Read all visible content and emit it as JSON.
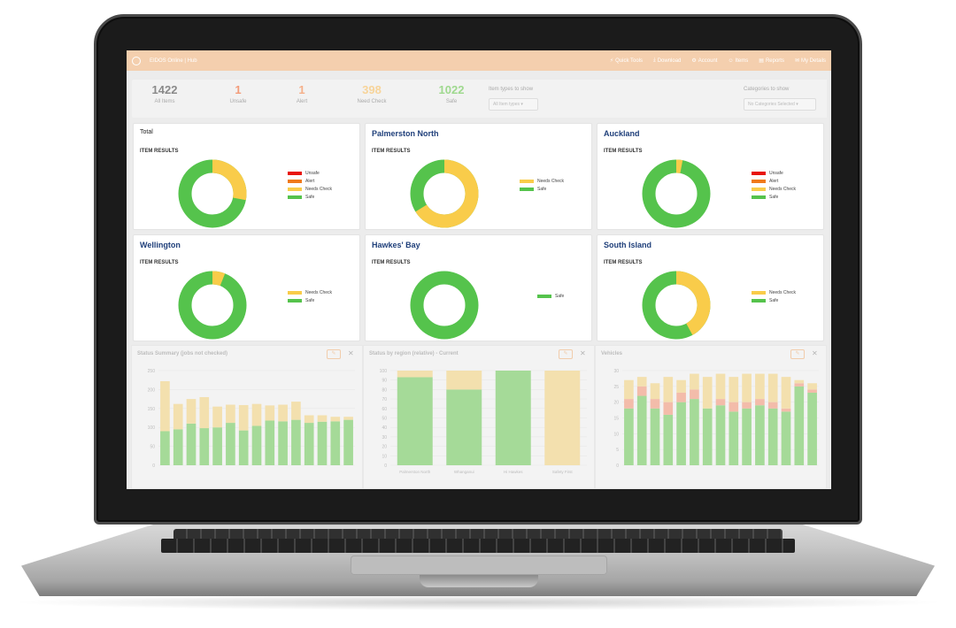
{
  "app": {
    "title": "EIDOS Online | Hub"
  },
  "nav": [
    {
      "icon": "lightning-icon",
      "label": "Quick Tools"
    },
    {
      "icon": "download-icon",
      "label": "Download"
    },
    {
      "icon": "gear-icon",
      "label": "Account"
    },
    {
      "icon": "user-icon",
      "label": "Items"
    },
    {
      "icon": "report-icon",
      "label": "Reports"
    },
    {
      "icon": "inbox-icon",
      "label": "My Details"
    }
  ],
  "summary": [
    {
      "value": "1422",
      "label": "All Items",
      "color": "#8a8a8a"
    },
    {
      "value": "1",
      "label": "Unsafe",
      "color": "#f39c7a"
    },
    {
      "value": "1",
      "label": "Alert",
      "color": "#f5b08a"
    },
    {
      "value": "398",
      "label": "Need Check",
      "color": "#f7d49a"
    },
    {
      "value": "1022",
      "label": "Safe",
      "color": "#9fd98f"
    }
  ],
  "filters": {
    "item_types_label": "Item types to show",
    "item_types_value": "All Item types",
    "categories_label": "Categories to show",
    "categories_value": "No Categories Selected"
  },
  "colors": {
    "unsafe": "#e8140c",
    "alert": "#f07a1a",
    "needs_check": "#f9cc4a",
    "safe": "#55c34c"
  },
  "cards": [
    {
      "title": "Total",
      "subtitle": "ITEM RESULTS",
      "safe": 72,
      "needs": 28,
      "legend": [
        "Unsafe",
        "Alert",
        "Needs Check",
        "Safe"
      ]
    },
    {
      "title": "Palmerston North",
      "subtitle": "ITEM RESULTS",
      "safe": 34,
      "needs": 66,
      "legend": [
        "Needs Check",
        "Safe"
      ]
    },
    {
      "title": "Auckland",
      "subtitle": "ITEM RESULTS",
      "safe": 97,
      "needs": 3,
      "legend": [
        "Unsafe",
        "Alert",
        "Needs Check",
        "Safe"
      ]
    },
    {
      "title": "Wellington",
      "subtitle": "ITEM RESULTS",
      "safe": 94,
      "needs": 6,
      "legend": [
        "Needs Check",
        "Safe"
      ]
    },
    {
      "title": "Hawkes' Bay",
      "subtitle": "ITEM RESULTS",
      "safe": 100,
      "needs": 0,
      "legend": [
        "Safe"
      ]
    },
    {
      "title": "South Island",
      "subtitle": "ITEM RESULTS",
      "safe": 58,
      "needs": 42,
      "legend": [
        "Needs Check",
        "Safe"
      ]
    }
  ],
  "chart_data": [
    {
      "type": "bar",
      "title": "Status Summary (jobs not checked)",
      "ylim": [
        0,
        250
      ],
      "yticks": [
        0,
        50,
        100,
        150,
        200,
        250
      ],
      "series": [
        {
          "name": "Safe",
          "color": "#9ed98f",
          "values": [
            90,
            95,
            110,
            98,
            100,
            112,
            92,
            104,
            118,
            116,
            120,
            112,
            115,
            116,
            120
          ]
        },
        {
          "name": "Needs Check",
          "color": "#f4dfa8",
          "values": [
            132,
            67,
            65,
            82,
            55,
            48,
            67,
            58,
            40,
            44,
            48,
            20,
            17,
            12,
            8
          ]
        }
      ]
    },
    {
      "type": "bar",
      "title": "Status by region (relative) - Current",
      "categories": [
        "Palmerston North",
        "Whanganui",
        "Hi Hawkes",
        "Safety First"
      ],
      "ylim": [
        0,
        100
      ],
      "yticks": [
        0,
        10,
        20,
        30,
        40,
        50,
        60,
        70,
        80,
        90,
        100
      ],
      "series": [
        {
          "name": "Safe",
          "color": "#9ed98f",
          "values": [
            93,
            80,
            100,
            0
          ]
        },
        {
          "name": "Needs Check",
          "color": "#f4dfa8",
          "values": [
            7,
            20,
            0,
            100
          ]
        }
      ]
    },
    {
      "type": "bar",
      "title": "Vehicles",
      "ylim": [
        0,
        30
      ],
      "yticks": [
        0,
        5,
        10,
        15,
        20,
        25,
        30
      ],
      "series": [
        {
          "name": "Safe",
          "color": "#9ed98f",
          "values": [
            18,
            22,
            18,
            16,
            20,
            21,
            18,
            19,
            17,
            18,
            19,
            18,
            17,
            25,
            23
          ]
        },
        {
          "name": "Alert",
          "color": "#f4b7a3",
          "values": [
            3,
            3,
            3,
            4,
            3,
            3,
            0,
            2,
            3,
            2,
            2,
            2,
            1,
            1,
            1
          ]
        },
        {
          "name": "Needs Check",
          "color": "#f4dfa8",
          "values": [
            6,
            3,
            5,
            8,
            4,
            5,
            10,
            8,
            8,
            9,
            8,
            9,
            10,
            1,
            2
          ]
        }
      ]
    }
  ]
}
